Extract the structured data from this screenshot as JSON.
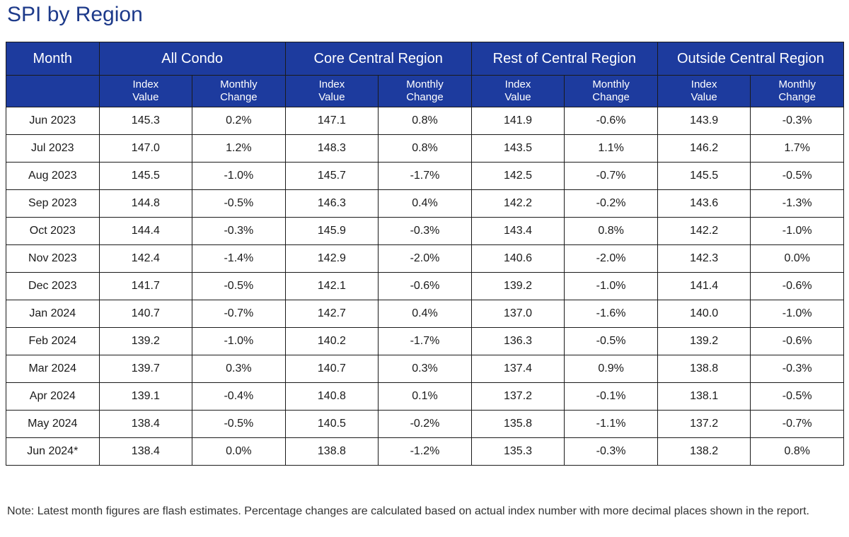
{
  "title": "SPI by Region",
  "table": {
    "month_header": "Month",
    "groups": [
      "All Condo",
      "Core Central Region",
      "Rest of Central Region",
      "Outside Central Region"
    ],
    "subheaders": {
      "index_line1": "Index",
      "index_line2": "Value",
      "change_line1": "Monthly",
      "change_line2": "Change"
    },
    "rows": [
      [
        "Jun 2023",
        "145.3",
        "0.2%",
        "147.1",
        "0.8%",
        "141.9",
        "-0.6%",
        "143.9",
        "-0.3%"
      ],
      [
        "Jul 2023",
        "147.0",
        "1.2%",
        "148.3",
        "0.8%",
        "143.5",
        "1.1%",
        "146.2",
        "1.7%"
      ],
      [
        "Aug 2023",
        "145.5",
        "-1.0%",
        "145.7",
        "-1.7%",
        "142.5",
        "-0.7%",
        "145.5",
        "-0.5%"
      ],
      [
        "Sep 2023",
        "144.8",
        "-0.5%",
        "146.3",
        "0.4%",
        "142.2",
        "-0.2%",
        "143.6",
        "-1.3%"
      ],
      [
        "Oct 2023",
        "144.4",
        "-0.3%",
        "145.9",
        "-0.3%",
        "143.4",
        "0.8%",
        "142.2",
        "-1.0%"
      ],
      [
        "Nov 2023",
        "142.4",
        "-1.4%",
        "142.9",
        "-2.0%",
        "140.6",
        "-2.0%",
        "142.3",
        "0.0%"
      ],
      [
        "Dec 2023",
        "141.7",
        "-0.5%",
        "142.1",
        "-0.6%",
        "139.2",
        "-1.0%",
        "141.4",
        "-0.6%"
      ],
      [
        "Jan 2024",
        "140.7",
        "-0.7%",
        "142.7",
        "0.4%",
        "137.0",
        "-1.6%",
        "140.0",
        "-1.0%"
      ],
      [
        "Feb 2024",
        "139.2",
        "-1.0%",
        "140.2",
        "-1.7%",
        "136.3",
        "-0.5%",
        "139.2",
        "-0.6%"
      ],
      [
        "Mar 2024",
        "139.7",
        "0.3%",
        "140.7",
        "0.3%",
        "137.4",
        "0.9%",
        "138.8",
        "-0.3%"
      ],
      [
        "Apr 2024",
        "139.1",
        "-0.4%",
        "140.8",
        "0.1%",
        "137.2",
        "-0.1%",
        "138.1",
        "-0.5%"
      ],
      [
        "May 2024",
        "138.4",
        "-0.5%",
        "140.5",
        "-0.2%",
        "135.8",
        "-1.1%",
        "137.2",
        "-0.7%"
      ],
      [
        "Jun 2024*",
        "138.4",
        "0.0%",
        "138.8",
        "-1.2%",
        "135.3",
        "-0.3%",
        "138.2",
        "0.8%"
      ]
    ]
  },
  "note": "Note: Latest month figures are flash estimates. Percentage changes are calculated based on actual index number with more decimal places shown in the report."
}
